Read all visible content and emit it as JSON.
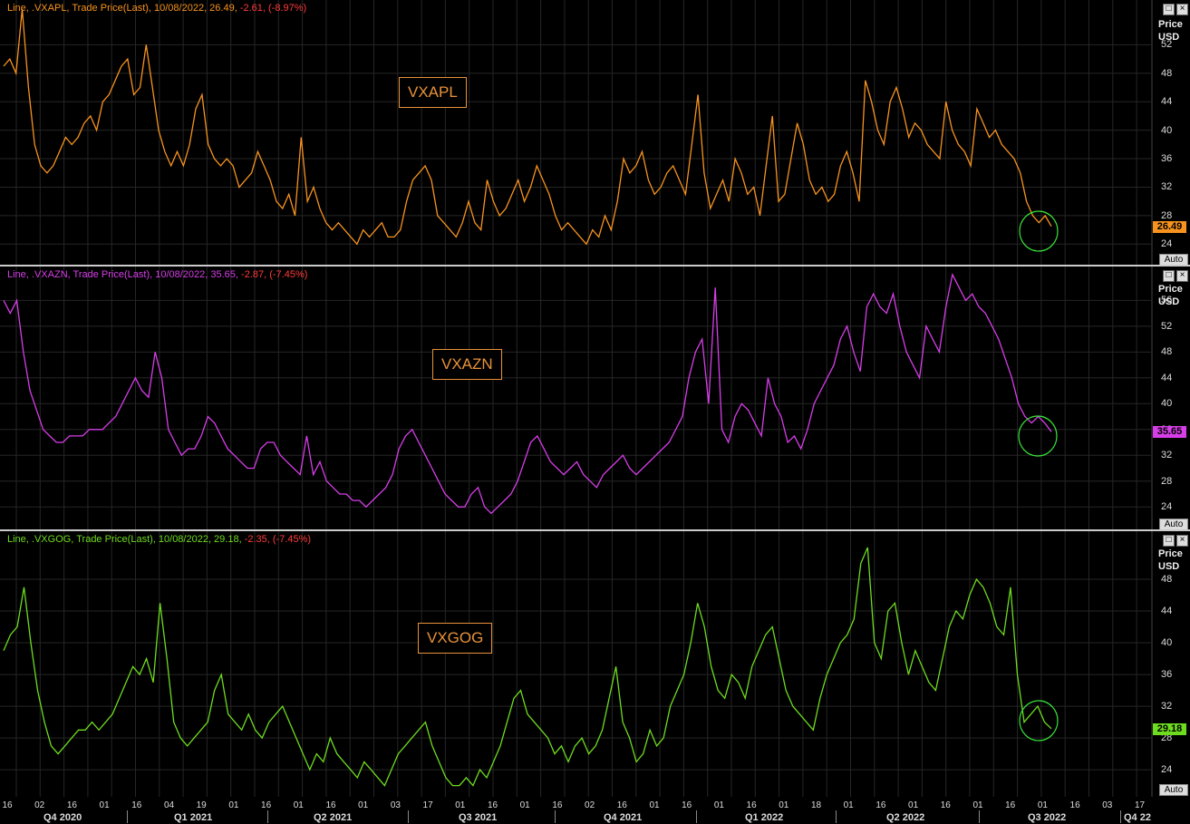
{
  "panels": [
    {
      "id": "vxapl",
      "header_name": "Line, .VXAPL, Trade Price(Last), 10/08/2022, 26.49,",
      "header_change": " -2.61, (-8.97%)",
      "header_color": "#f7931e",
      "label": "VXAPL",
      "axis_title": "Price",
      "axis_unit": "USD",
      "last_value": "26.49",
      "auto_label": "Auto"
    },
    {
      "id": "vxazn",
      "header_name": "Line, .VXAZN, Trade Price(Last), 10/08/2022, 35.65,",
      "header_change": " -2.87, (-7.45%)",
      "header_color": "#d63ee8",
      "label": "VXAZN",
      "axis_title": "Price",
      "axis_unit": "USD",
      "last_value": "35.65",
      "auto_label": "Auto"
    },
    {
      "id": "vxgog",
      "header_name": "Line, .VXGOG, Trade Price(Last), 10/08/2022, 29.18,",
      "header_change": " -2.35, (-7.45%)",
      "header_color": "#6edc1e",
      "label": "VXGOG",
      "axis_title": "Price",
      "axis_unit": "USD",
      "last_value": "29.18",
      "auto_label": "Auto"
    }
  ],
  "x_ticks": [
    "16",
    "02",
    "16",
    "01",
    "16",
    "04",
    "19",
    "01",
    "16",
    "01",
    "16",
    "01",
    "03",
    "17",
    "01",
    "16",
    "01",
    "16",
    "02",
    "16",
    "01",
    "16",
    "01",
    "16",
    "01",
    "18",
    "01",
    "16",
    "01",
    "16",
    "01",
    "16",
    "01",
    "16",
    "03",
    "17"
  ],
  "quarters": [
    "Q4 2020",
    "Q1 2021",
    "Q2 2021",
    "Q3 2021",
    "Q4 2021",
    "Q1 2022",
    "Q2 2022",
    "Q3 2022",
    "Q4 22"
  ],
  "chart_data": [
    {
      "type": "line",
      "title": "",
      "ylabel": "Price USD",
      "ylim": [
        22,
        56
      ],
      "yticks": [
        24,
        28,
        32,
        36,
        40,
        44,
        48,
        52
      ],
      "color": "#f7931e",
      "series": [
        {
          "name": ".VXAPL",
          "values": [
            49,
            50,
            48,
            57,
            46,
            38,
            35,
            34,
            35,
            37,
            39,
            38,
            39,
            41,
            42,
            40,
            44,
            45,
            47,
            49,
            50,
            45,
            46,
            52,
            46,
            40,
            37,
            35,
            37,
            35,
            38,
            43,
            45,
            38,
            36,
            35,
            36,
            35,
            32,
            33,
            34,
            37,
            35,
            33,
            30,
            29,
            31,
            28,
            39,
            30,
            32,
            29,
            27,
            26,
            27,
            26,
            25,
            24,
            26,
            25,
            26,
            27,
            25,
            25,
            26,
            30,
            33,
            34,
            35,
            33,
            28,
            27,
            26,
            25,
            27,
            30,
            27,
            26,
            33,
            30,
            28,
            29,
            31,
            33,
            30,
            32,
            35,
            33,
            31,
            28,
            26,
            27,
            26,
            25,
            24,
            26,
            25,
            28,
            26,
            30,
            36,
            34,
            35,
            37,
            33,
            31,
            32,
            34,
            35,
            33,
            31,
            38,
            45,
            34,
            29,
            31,
            33,
            30,
            36,
            34,
            31,
            32,
            28,
            35,
            42,
            30,
            31,
            36,
            41,
            38,
            33,
            31,
            32,
            30,
            31,
            35,
            37,
            34,
            30,
            47,
            44,
            40,
            38,
            44,
            46,
            43,
            39,
            41,
            40,
            38,
            37,
            36,
            44,
            40,
            38,
            37,
            35,
            43,
            41,
            39,
            40,
            38,
            37,
            36,
            34,
            30,
            28,
            27,
            28,
            26.49
          ]
        }
      ]
    },
    {
      "type": "line",
      "title": "",
      "ylabel": "Price USD",
      "ylim": [
        21.5,
        59
      ],
      "yticks": [
        24,
        28,
        32,
        36,
        40,
        44,
        48,
        52,
        56
      ],
      "color": "#d63ee8",
      "series": [
        {
          "name": ".VXAZN",
          "values": [
            56,
            54,
            56,
            48,
            42,
            39,
            36,
            35,
            34,
            34,
            35,
            35,
            35,
            36,
            36,
            36,
            37,
            38,
            40,
            42,
            44,
            42,
            41,
            48,
            44,
            36,
            34,
            32,
            33,
            33,
            35,
            38,
            37,
            35,
            33,
            32,
            31,
            30,
            30,
            33,
            34,
            34,
            32,
            31,
            30,
            29,
            35,
            29,
            31,
            28,
            27,
            26,
            26,
            25,
            25,
            24,
            25,
            26,
            27,
            29,
            33,
            35,
            36,
            34,
            32,
            30,
            28,
            26,
            25,
            24,
            24,
            26,
            27,
            24,
            23,
            24,
            25,
            26,
            28,
            31,
            34,
            35,
            33,
            31,
            30,
            29,
            30,
            31,
            29,
            28,
            27,
            29,
            30,
            31,
            32,
            30,
            29,
            30,
            31,
            32,
            33,
            34,
            36,
            38,
            44,
            48,
            50,
            40,
            58,
            36,
            34,
            38,
            40,
            39,
            37,
            35,
            44,
            40,
            38,
            34,
            35,
            33,
            36,
            40,
            42,
            44,
            46,
            50,
            52,
            48,
            45,
            55,
            57,
            55,
            54,
            57,
            52,
            48,
            46,
            44,
            52,
            50,
            48,
            55,
            60,
            58,
            56,
            57,
            55,
            54,
            52,
            50,
            47,
            44,
            40,
            38,
            37,
            38,
            37,
            35.65
          ]
        }
      ]
    },
    {
      "type": "line",
      "title": "",
      "ylabel": "Price USD",
      "ylim": [
        21.5,
        52
      ],
      "yticks": [
        24,
        28,
        32,
        36,
        40,
        44,
        48
      ],
      "color": "#6edc1e",
      "series": [
        {
          "name": ".VXGOG",
          "values": [
            39,
            41,
            42,
            47,
            40,
            34,
            30,
            27,
            26,
            27,
            28,
            29,
            29,
            30,
            29,
            30,
            31,
            33,
            35,
            37,
            36,
            38,
            35,
            45,
            38,
            30,
            28,
            27,
            28,
            29,
            30,
            34,
            36,
            31,
            30,
            29,
            31,
            29,
            28,
            30,
            31,
            32,
            30,
            28,
            26,
            24,
            26,
            25,
            28,
            26,
            25,
            24,
            23,
            25,
            24,
            23,
            22,
            24,
            26,
            27,
            28,
            29,
            30,
            27,
            25,
            23,
            22,
            22,
            23,
            22,
            24,
            23,
            25,
            27,
            30,
            33,
            34,
            31,
            30,
            29,
            28,
            26,
            27,
            25,
            27,
            28,
            26,
            27,
            29,
            33,
            37,
            30,
            28,
            25,
            26,
            29,
            27,
            28,
            32,
            34,
            36,
            40,
            45,
            42,
            37,
            34,
            33,
            36,
            35,
            33,
            37,
            39,
            41,
            42,
            38,
            34,
            32,
            31,
            30,
            29,
            33,
            36,
            38,
            40,
            41,
            43,
            50,
            52,
            40,
            38,
            44,
            45,
            40,
            36,
            39,
            37,
            35,
            34,
            38,
            42,
            44,
            43,
            46,
            48,
            47,
            45,
            42,
            41,
            47,
            36,
            30,
            31,
            32,
            30,
            29.18
          ]
        }
      ]
    }
  ]
}
